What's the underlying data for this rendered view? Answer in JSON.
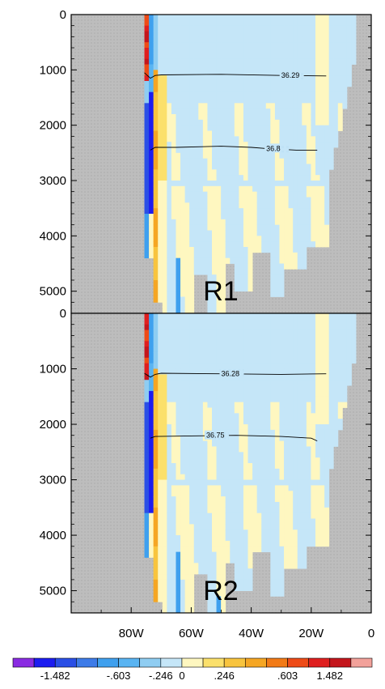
{
  "chart_data": {
    "type": "heatmap",
    "title": "",
    "xlabel": "",
    "ylabel": "",
    "x_ticks": [
      "80W",
      "60W",
      "40W",
      "20W",
      "0"
    ],
    "x_range": [
      100,
      0
    ],
    "y_range": [
      0,
      5400
    ],
    "y_tick_labels": [
      "0",
      "1000",
      "2000",
      "3000",
      "4000",
      "5000"
    ],
    "y_ticks": [
      0,
      1000,
      2000,
      3000,
      4000,
      5000
    ],
    "colorbar": {
      "tick_labels": [
        "-1.482",
        "-.603",
        "-.246",
        "0",
        ".246",
        ".603",
        "1.482"
      ],
      "colors": [
        "#8a2be2",
        "#1c1cf0",
        "#2a4fe6",
        "#3d7be8",
        "#3fa0ee",
        "#59b4f2",
        "#8fcdf2",
        "#c5e6f8",
        "#fef7c0",
        "#fbe06b",
        "#f8c43e",
        "#f5a623",
        "#f27a16",
        "#ee4b17",
        "#df1f1f",
        "#c4161c",
        "#f2a19a"
      ]
    },
    "panels": [
      {
        "name": "R1",
        "contours": [
          {
            "label": "36.29",
            "points": [
              [
                75.6,
                1050
              ],
              [
                73.6,
                1150
              ],
              [
                72,
                1100
              ],
              [
                70,
                1090
              ],
              [
                50,
                1080
              ],
              [
                30,
                1100
              ],
              [
                15,
                1110
              ]
            ]
          },
          {
            "label": "36.8",
            "points": [
              [
                73.6,
                2450
              ],
              [
                72,
                2400
              ],
              [
                65,
                2400
              ],
              [
                50,
                2380
              ],
              [
                40,
                2400
              ],
              [
                35,
                2420
              ],
              [
                25,
                2450
              ],
              [
                18,
                2450
              ]
            ]
          }
        ]
      },
      {
        "name": "R2",
        "contours": [
          {
            "label": "36.28",
            "points": [
              [
                75.6,
                1080
              ],
              [
                73.6,
                1150
              ],
              [
                72,
                1100
              ],
              [
                70,
                1080
              ],
              [
                50,
                1090
              ],
              [
                30,
                1100
              ],
              [
                15,
                1090
              ]
            ]
          },
          {
            "label": "36.75",
            "points": [
              [
                73.6,
                2250
              ],
              [
                72,
                2220
              ],
              [
                60,
                2210
              ],
              [
                45,
                2200
              ],
              [
                30,
                2220
              ],
              [
                20,
                2250
              ],
              [
                18,
                2300
              ]
            ]
          }
        ]
      }
    ],
    "grid": false,
    "legend": "bottom colorbar"
  }
}
